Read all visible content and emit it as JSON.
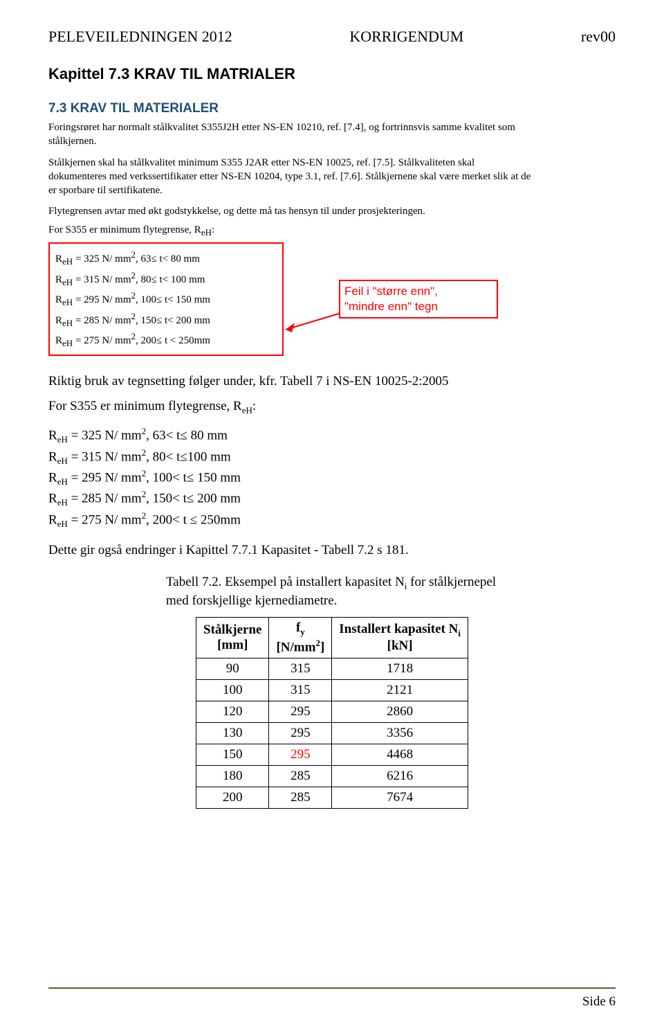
{
  "header": {
    "left": "PELEVEILEDNINGEN 2012",
    "center": "KORRIGENDUM",
    "right": "rev00"
  },
  "chapter_title": "Kapittel 7.3 KRAV TIL MATRIALER",
  "excerpt": {
    "heading": "7.3   KRAV TIL MATERIALER",
    "p1": "Foringsrøret har normalt stålkvalitet S355J2H etter NS-EN 10210, ref. [7.4], og fortrinnsvis samme kvalitet som stålkjernen.",
    "p2": "Stålkjernen skal ha stålkvalitet minimum S355 J2AR etter NS-EN 10025, ref. [7.5]. Stålkvaliteten skal dokumenteres med verkssertifikater etter NS-EN 10204, type 3.1, ref. [7.6]. Stålkjernene skal være merket slik at de er sporbare til sertifikatene.",
    "p3": "Flytegrensen avtar med økt godstykkelse, og dette må tas hensyn til under prosjekteringen.",
    "p4_prefix": "For S355 er minimum flytegrense, R",
    "p4_sub": "eH",
    "p4_suffix": ":",
    "reh_lines": [
      {
        "prefix": "R",
        "sub": "eH",
        "text": " = 325 N/ mm",
        "sup": "2",
        "tail": ", 63≤ t< 80 mm"
      },
      {
        "prefix": "R",
        "sub": "eH",
        "text": " = 315 N/ mm",
        "sup": "2",
        "tail": ", 80≤ t< 100 mm"
      },
      {
        "prefix": "R",
        "sub": "eH",
        "text": " = 295 N/ mm",
        "sup": "2",
        "tail": ", 100≤ t< 150 mm"
      },
      {
        "prefix": "R",
        "sub": "eH",
        "text": " = 285 N/ mm",
        "sup": "2",
        "tail": ", 150≤ t< 200 mm"
      },
      {
        "prefix": "R",
        "sub": "eH",
        "text": " = 275 N/ mm",
        "sup": "2",
        "tail": ", 200≤ t < 250mm"
      }
    ],
    "callout_l1": "Feil i \"større enn\",",
    "callout_l2": "\"mindre enn\" tegn"
  },
  "post": {
    "line1": "Riktig bruk av tegnsetting følger under, kfr. Tabell 7 i NS-EN 10025-2:2005",
    "line2_prefix": "For S355 er minimum flytegrense, R",
    "line2_sub": "eH",
    "line2_suffix": ":",
    "reh_lines": [
      {
        "prefix": "R",
        "sub": "eH",
        "text": " = 325 N/ mm",
        "sup": "2",
        "tail": ", 63< t≤ 80 mm"
      },
      {
        "prefix": "R",
        "sub": "eH",
        "text": " = 315 N/ mm",
        "sup": "2",
        "tail": ", 80< t≤100 mm"
      },
      {
        "prefix": "R",
        "sub": "eH",
        "text": " = 295 N/ mm",
        "sup": "2",
        "tail": ", 100< t≤ 150 mm"
      },
      {
        "prefix": "R",
        "sub": "eH",
        "text": " = 285 N/ mm",
        "sup": "2",
        "tail": ", 150< t≤ 200 mm"
      },
      {
        "prefix": "R",
        "sub": "eH",
        "text": " = 275 N/ mm",
        "sup": "2",
        "tail": ", 200< t ≤ 250mm"
      }
    ]
  },
  "narrative": "Dette gir også endringer i Kapittel 7.7.1 Kapasitet - Tabell 7.2 s 181.",
  "table": {
    "caption_prefix": "Tabell 7.2. Eksempel på installert kapasitet N",
    "caption_sub": "i",
    "caption_suffix": " for stålkjernepel med forskjellige kjernediametre.",
    "headers": {
      "c1_l1": "Stålkjerne",
      "c1_l2": "[mm]",
      "c2_l1": "f",
      "c2_sub": "y",
      "c2_l2_prefix": "[N/mm",
      "c2_l2_sup": "2",
      "c2_l2_suffix": "]",
      "c3_l1_prefix": "Installert kapasitet N",
      "c3_l1_sub": "i",
      "c3_l2": "[kN]"
    },
    "rows": [
      {
        "c1": "90",
        "c2": "315",
        "c3": "1718",
        "red": false
      },
      {
        "c1": "100",
        "c2": "315",
        "c3": "2121",
        "red": false
      },
      {
        "c1": "120",
        "c2": "295",
        "c3": "2860",
        "red": false
      },
      {
        "c1": "130",
        "c2": "295",
        "c3": "3356",
        "red": false
      },
      {
        "c1": "150",
        "c2": "295",
        "c3": "4468",
        "red": true
      },
      {
        "c1": "180",
        "c2": "285",
        "c3": "6216",
        "red": false
      },
      {
        "c1": "200",
        "c2": "285",
        "c3": "7674",
        "red": false
      }
    ]
  },
  "footer": "Side 6",
  "colors": {
    "heading": "#1f4e79",
    "red": "#ff0000",
    "footer_line": "#4f6228"
  }
}
